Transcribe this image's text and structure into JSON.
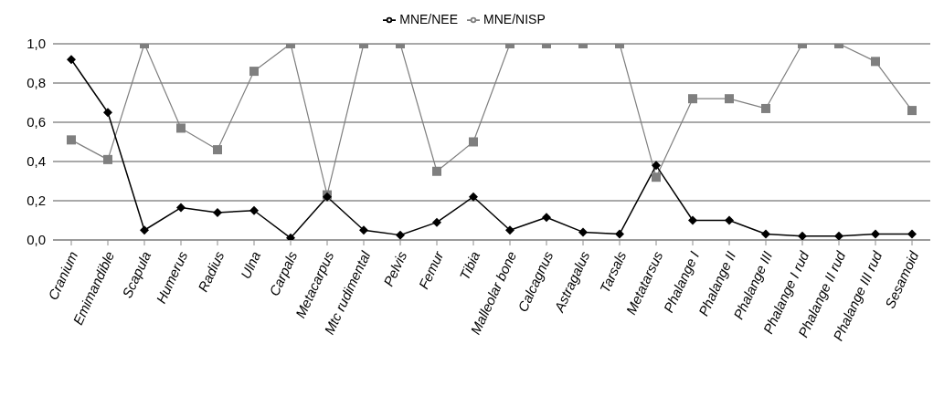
{
  "chart_data": {
    "type": "line",
    "categories": [
      "Cranium",
      "Emimandible",
      "Scapula",
      "Humerus",
      "Radius",
      "Ulna",
      "Carpals",
      "Metacarpus",
      "Mtc rudimental",
      "Pelvis",
      "Femur",
      "Tibia",
      "Malleolar bone",
      "Calcagnus",
      "Astragalus",
      "Tarsals",
      "Metatarsus",
      "Phalange I",
      "Phalange II",
      "Phalange III",
      "Phalange I rud",
      "Phalange II rud",
      "Phalange III rud",
      "Sesamoid"
    ],
    "series": [
      {
        "name": "MNE/NEE",
        "color": "#000000",
        "marker": "diamond",
        "values": [
          0.92,
          0.65,
          0.05,
          0.165,
          0.14,
          0.15,
          0.01,
          0.22,
          0.05,
          0.025,
          0.09,
          0.22,
          0.05,
          0.115,
          0.04,
          0.03,
          0.38,
          0.1,
          0.1,
          0.03,
          0.02,
          0.02,
          0.03,
          0.03
        ]
      },
      {
        "name": "MNE/NISP",
        "color": "#7f7f7f",
        "marker": "square",
        "values": [
          0.51,
          0.41,
          1,
          0.57,
          0.46,
          0.86,
          1,
          0.23,
          1,
          1,
          0.35,
          0.5,
          1,
          1,
          1,
          1,
          0.32,
          0.72,
          0.72,
          0.67,
          1,
          1,
          0.91,
          0.66
        ]
      }
    ],
    "ylim": [
      0,
      1
    ],
    "yticks": [
      {
        "value": 0,
        "label": "0,0"
      },
      {
        "value": 0.2,
        "label": "0,2"
      },
      {
        "value": 0.4,
        "label": "0,4"
      },
      {
        "value": 0.6,
        "label": "0,6"
      },
      {
        "value": 0.8,
        "label": "0,8"
      },
      {
        "value": 1,
        "label": "1,0"
      }
    ],
    "grid": "y",
    "legend": "top"
  }
}
